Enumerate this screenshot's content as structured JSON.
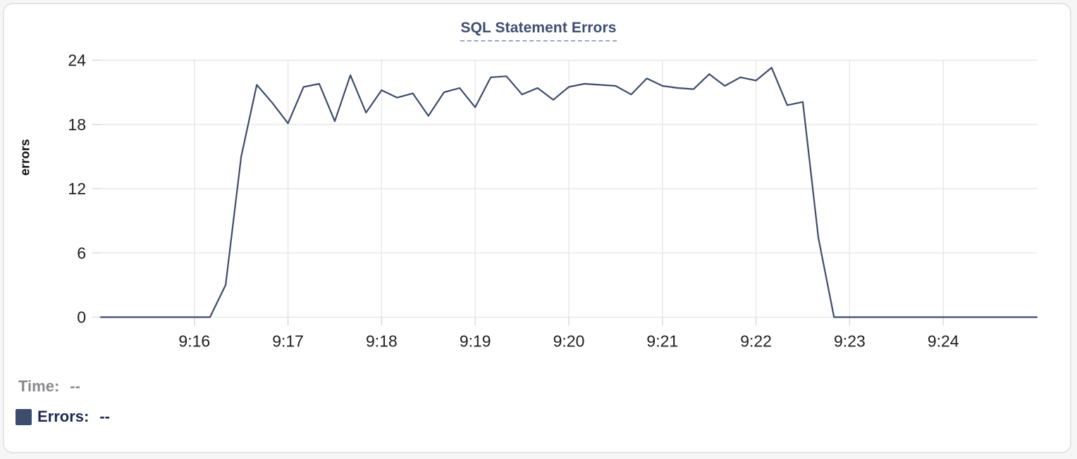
{
  "chart": {
    "title": "SQL Statement Errors",
    "y_axis_label": "errors"
  },
  "tooltip": {
    "time_label": "Time:",
    "time_value": "--",
    "errors_label": "Errors:",
    "errors_value": "--"
  },
  "colors": {
    "line": "#3d4c6b",
    "title": "#3f4e70",
    "title_dash": "#9aa7c4",
    "grid": "#e8e8ea",
    "tick_mark": "#dadadc",
    "axis_text": "#202022",
    "legend_time": "#8a8a8e",
    "legend_errors": "#1e2b4e",
    "swatch": "#3e4d6d",
    "card_border": "#e4e4e7",
    "card_bg": "#ffffff"
  },
  "chart_data": {
    "type": "line",
    "title": "SQL Statement Errors",
    "xlabel": "",
    "ylabel": "errors",
    "ylim": [
      0,
      24
    ],
    "y_ticks": [
      0,
      6,
      12,
      18,
      24
    ],
    "x_tick_labels": [
      "9:16",
      "9:17",
      "9:18",
      "9:19",
      "9:20",
      "9:21",
      "9:22",
      "9:23",
      "9:24"
    ],
    "x_range": [
      "9:15:00",
      "9:25:00"
    ],
    "grid": true,
    "legend_position": "bottom-left",
    "series": [
      {
        "name": "Errors",
        "x": [
          "9:15:00",
          "9:15:10",
          "9:15:20",
          "9:15:30",
          "9:15:40",
          "9:15:50",
          "9:16:00",
          "9:16:10",
          "9:16:20",
          "9:16:30",
          "9:16:40",
          "9:16:50",
          "9:17:00",
          "9:17:10",
          "9:17:20",
          "9:17:30",
          "9:17:40",
          "9:17:50",
          "9:18:00",
          "9:18:10",
          "9:18:20",
          "9:18:30",
          "9:18:40",
          "9:18:50",
          "9:19:00",
          "9:19:10",
          "9:19:20",
          "9:19:30",
          "9:19:40",
          "9:19:50",
          "9:20:00",
          "9:20:10",
          "9:20:20",
          "9:20:30",
          "9:20:40",
          "9:20:50",
          "9:21:00",
          "9:21:10",
          "9:21:20",
          "9:21:30",
          "9:21:40",
          "9:21:50",
          "9:22:00",
          "9:22:10",
          "9:22:20",
          "9:22:30",
          "9:22:40",
          "9:22:50",
          "9:23:00",
          "9:23:10",
          "9:23:20",
          "9:23:30",
          "9:23:40",
          "9:23:50",
          "9:24:00",
          "9:24:10",
          "9:24:20",
          "9:24:30",
          "9:24:40",
          "9:24:50",
          "9:25:00"
        ],
        "values": [
          0,
          0,
          0,
          0,
          0,
          0,
          0,
          0,
          3,
          15,
          21.7,
          20,
          18.1,
          21.5,
          21.8,
          18.3,
          22.6,
          19.1,
          21.2,
          20.5,
          20.9,
          18.8,
          21,
          21.4,
          19.6,
          22.4,
          22.5,
          20.8,
          21.4,
          20.3,
          21.5,
          21.8,
          21.7,
          21.6,
          20.8,
          22.3,
          21.6,
          21.4,
          21.3,
          22.7,
          21.6,
          22.4,
          22.1,
          23.3,
          19.8,
          20.1,
          7.4,
          0,
          0,
          0,
          0,
          0,
          0,
          0,
          0,
          0,
          0,
          0,
          0,
          0,
          0
        ]
      }
    ]
  }
}
